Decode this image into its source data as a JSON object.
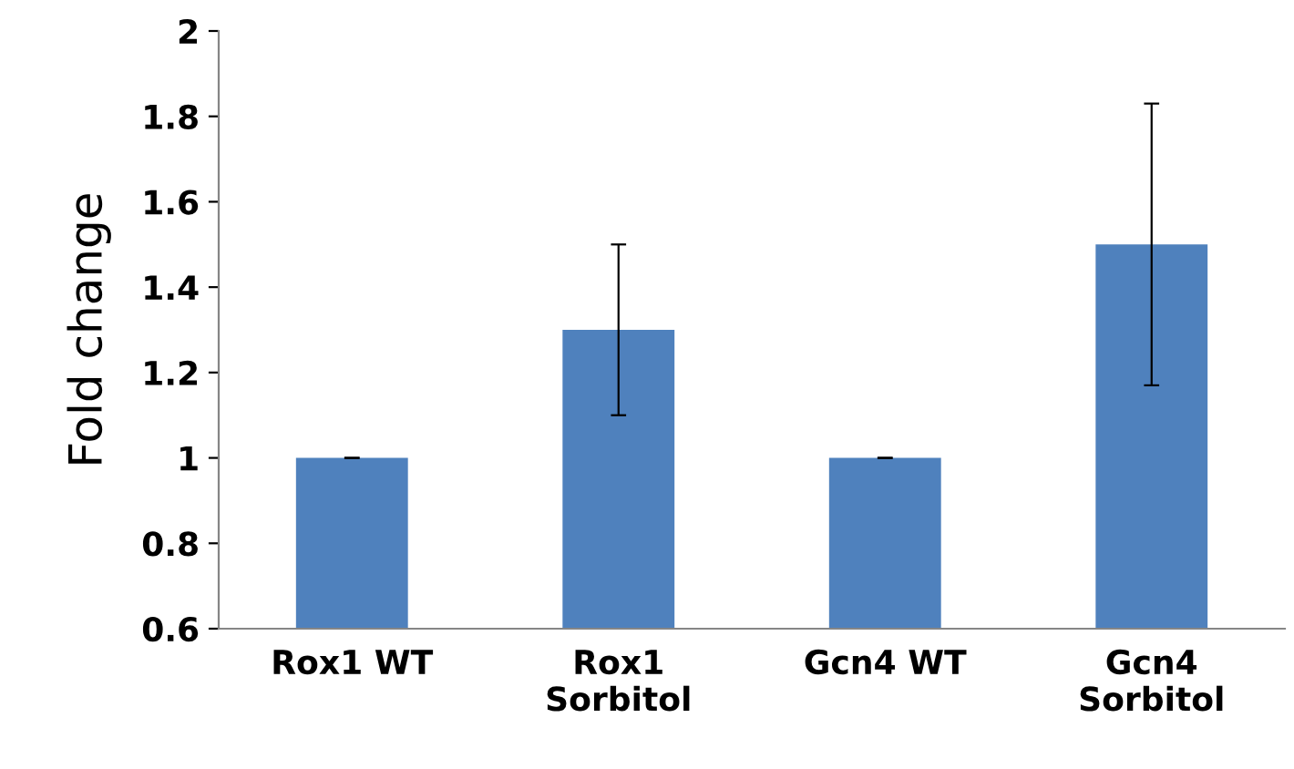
{
  "chart_data": {
    "type": "bar",
    "ylabel": "Fold change",
    "categories": [
      "Rox1 WT",
      "Rox1\nSorbitol",
      "Gcn4 WT",
      "Gcn4\nSorbitol"
    ],
    "values": [
      1,
      1.3,
      1,
      1.5
    ],
    "errors": [
      0,
      0.2,
      0,
      0.33
    ],
    "color": "#4f81bd",
    "ylim": [
      0.6,
      2
    ],
    "yticks": [
      0.6,
      0.8,
      1,
      1.2,
      1.4,
      1.6,
      1.8,
      2
    ],
    "grid": false,
    "legend": false
  }
}
